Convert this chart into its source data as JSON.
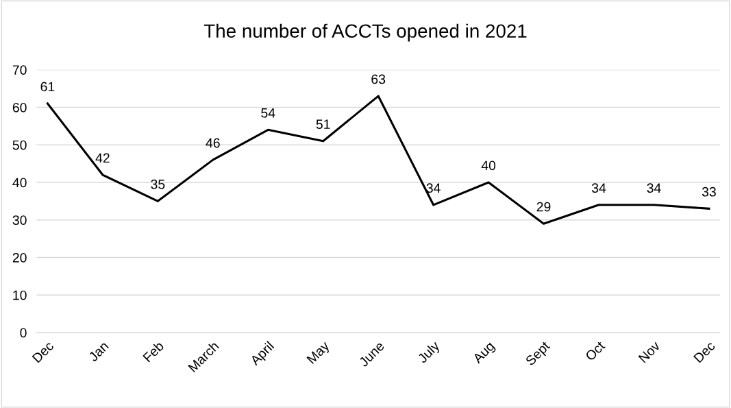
{
  "chart_data": {
    "type": "line",
    "title": "The number of ACCTs opened in 2021",
    "categories": [
      "Dec",
      "Jan",
      "Feb",
      "March",
      "April",
      "May",
      "June",
      "July",
      "Aug",
      "Sept",
      "Oct",
      "Nov",
      "Dec"
    ],
    "series": [
      {
        "color": "#000000",
        "values": [
          61,
          42,
          35,
          46,
          54,
          51,
          63,
          34,
          40,
          29,
          34,
          34,
          33
        ]
      }
    ],
    "ylim": [
      0,
      70
    ],
    "yticks": [
      0,
      10,
      20,
      30,
      40,
      50,
      60,
      70
    ],
    "grid": "y",
    "marker": "none",
    "line_style": "solid",
    "data_labels": true
  }
}
